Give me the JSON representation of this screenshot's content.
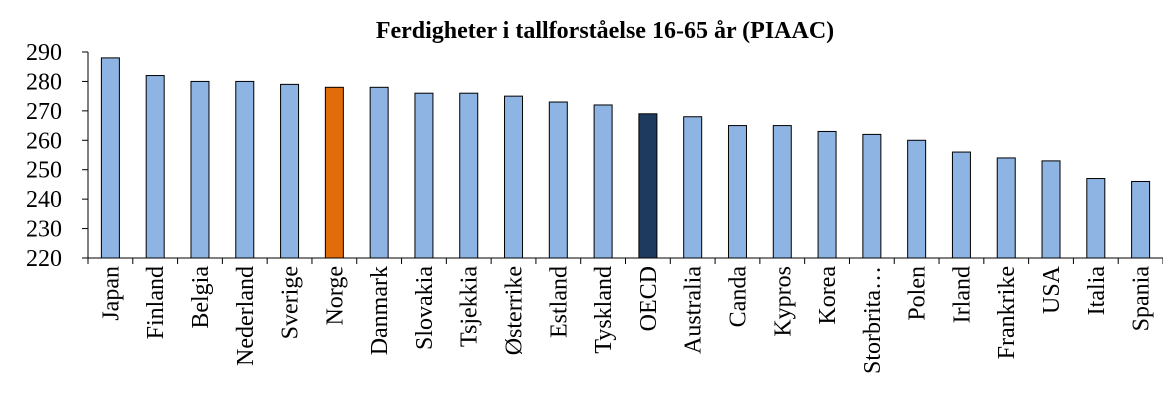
{
  "chart_data": {
    "type": "bar",
    "title": "Ferdigheter i tallforståelse 16-65 år (PIAAC)",
    "categories": [
      "Japan",
      "Finland",
      "Belgia",
      "Nederland",
      "Sverige",
      "Norge",
      "Danmark",
      "Slovakia",
      "Tsjekkia",
      "Østerrike",
      "Estland",
      "Tyskland",
      "OECD",
      "Australia",
      "Canda",
      "Kypros",
      "Korea",
      "Storbrita…",
      "Polen",
      "Irland",
      "Frankrike",
      "USA",
      "Italia",
      "Spania"
    ],
    "values": [
      288,
      282,
      280,
      280,
      279,
      278,
      278,
      276,
      276,
      275,
      273,
      272,
      269,
      268,
      265,
      265,
      263,
      262,
      260,
      256,
      254,
      253,
      247,
      246
    ],
    "colors": [
      "#8db4e2",
      "#8db4e2",
      "#8db4e2",
      "#8db4e2",
      "#8db4e2",
      "#e36c0a",
      "#8db4e2",
      "#8db4e2",
      "#8db4e2",
      "#8db4e2",
      "#8db4e2",
      "#8db4e2",
      "#1f3a5f",
      "#8db4e2",
      "#8db4e2",
      "#8db4e2",
      "#8db4e2",
      "#8db4e2",
      "#8db4e2",
      "#8db4e2",
      "#8db4e2",
      "#8db4e2",
      "#8db4e2",
      "#8db4e2"
    ],
    "ylim": [
      220,
      290
    ],
    "yticks": [
      220,
      230,
      240,
      250,
      260,
      270,
      280,
      290
    ],
    "grid": false
  }
}
